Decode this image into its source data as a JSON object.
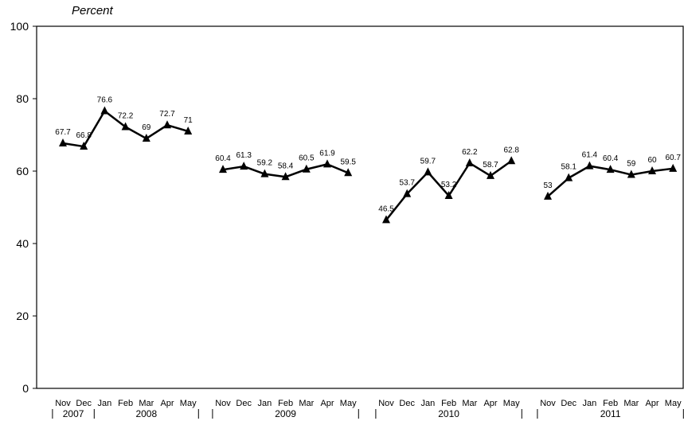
{
  "chart_data": {
    "type": "line",
    "title": "",
    "ylabel": "Percent",
    "xlabel": "",
    "ylim": [
      0,
      100
    ],
    "yticks": [
      0,
      20,
      40,
      60,
      80,
      100
    ],
    "grid": false,
    "line_color": "#000000",
    "marker": "triangle",
    "groups": [
      {
        "years": [
          {
            "label": "2007",
            "months": 2
          },
          {
            "label": "2008",
            "months": 5
          }
        ],
        "months": [
          "Nov",
          "Dec",
          "Jan",
          "Feb",
          "Mar",
          "Apr",
          "May"
        ],
        "values": [
          67.7,
          66.8,
          76.6,
          72.2,
          69,
          72.7,
          71
        ]
      },
      {
        "years": [
          {
            "label": "2009",
            "months": 7
          }
        ],
        "months": [
          "Nov",
          "Dec",
          "Jan",
          "Feb",
          "Mar",
          "Apr",
          "May"
        ],
        "values": [
          60.4,
          61.3,
          59.2,
          58.4,
          60.5,
          61.9,
          59.5
        ]
      },
      {
        "years": [
          {
            "label": "2010",
            "months": 7
          }
        ],
        "months": [
          "Nov",
          "Dec",
          "Jan",
          "Feb",
          "Mar",
          "Apr",
          "May"
        ],
        "values": [
          46.5,
          53.7,
          59.7,
          53.2,
          62.2,
          58.7,
          62.8
        ]
      },
      {
        "years": [
          {
            "label": "2011",
            "months": 7
          }
        ],
        "months": [
          "Nov",
          "Dec",
          "Jan",
          "Feb",
          "Mar",
          "Apr",
          "May"
        ],
        "values": [
          53,
          58.1,
          61.4,
          60.4,
          59,
          60,
          60.7
        ]
      }
    ]
  }
}
